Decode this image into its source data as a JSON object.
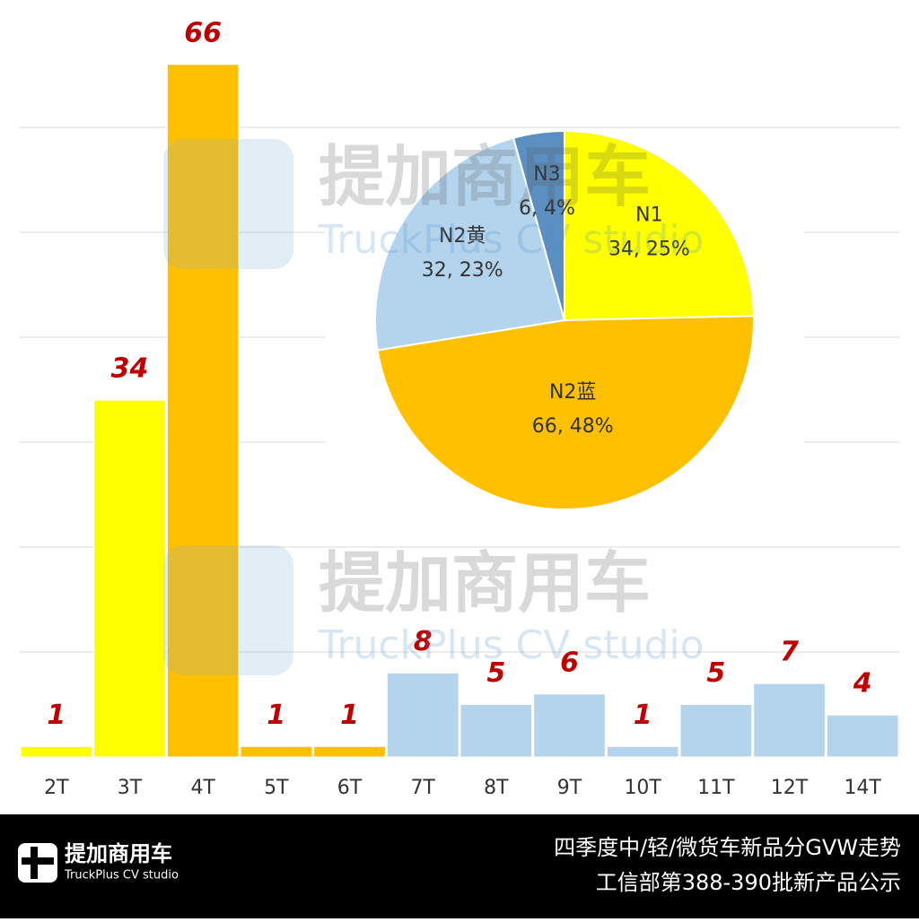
{
  "chart_data": [
    {
      "type": "bar",
      "categories": [
        "2T",
        "3T",
        "4T",
        "5T",
        "6T",
        "7T",
        "8T",
        "9T",
        "10T",
        "11T",
        "12T",
        "14T"
      ],
      "values": [
        1,
        34,
        66,
        1,
        1,
        8,
        5,
        6,
        1,
        5,
        7,
        4
      ],
      "colors": [
        "#ffff00",
        "#ffff00",
        "#ffc000",
        "#ffc000",
        "#ffc000",
        "#b4d4ee",
        "#b4d4ee",
        "#b4d4ee",
        "#b4d4ee",
        "#b4d4ee",
        "#b4d4ee",
        "#b4d4ee"
      ],
      "ylim": [
        0,
        70
      ],
      "yticks": [
        0,
        10,
        20,
        30,
        40,
        50,
        60
      ],
      "grid": true
    },
    {
      "type": "pie",
      "categories": [
        "N1",
        "N2蓝",
        "N2黄",
        "N3"
      ],
      "values": [
        34,
        66,
        32,
        6
      ],
      "value_labels": [
        "34, 25%",
        "66, 48%",
        "32, 23%",
        "6, 4%"
      ],
      "colors": [
        "#ffff00",
        "#ffc000",
        "#b4d4ee",
        "#5b8fc1"
      ]
    }
  ],
  "watermark": {
    "cn": "提加商用车",
    "en": "TruckPlus CV studio"
  },
  "footer": {
    "logo_cn": "提加商用车",
    "logo_en": "TruckPlus CV studio",
    "line1": "四季度中/轻/微货车新品分GVW走势",
    "line2": "工信部第388-390批新产品公示"
  }
}
